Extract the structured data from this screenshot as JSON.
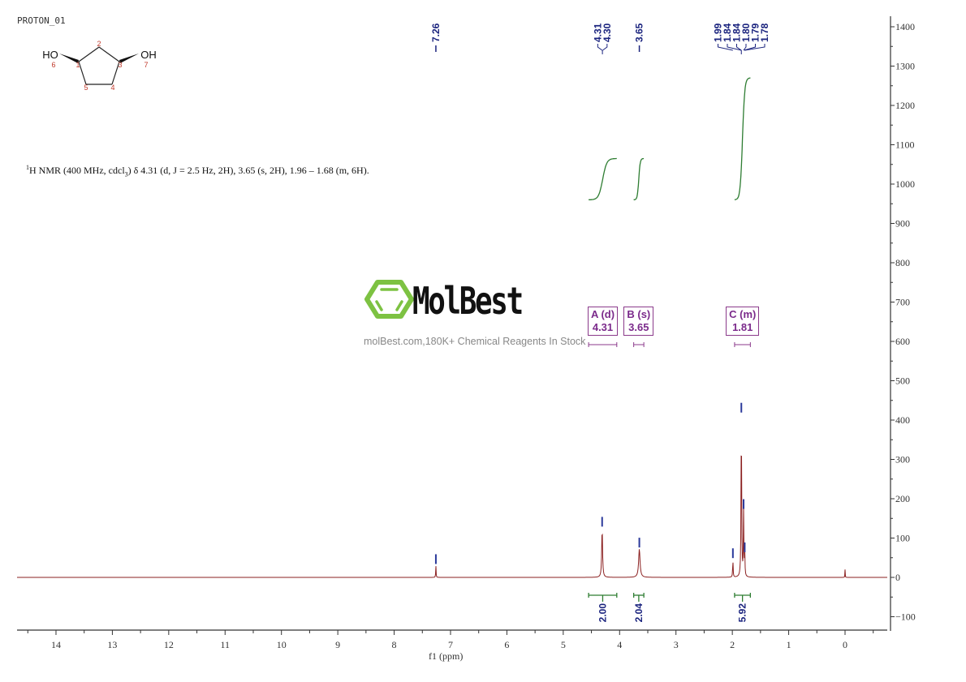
{
  "sample_name": "PROTON_01",
  "nmr_description_prefix": "H NMR (400 MHz, cdcl",
  "nmr_description_sup": "1",
  "nmr_description_sub": "3",
  "nmr_description_suffix": ") δ 4.31 (d, J = 2.5 Hz, 2H), 3.65 (s, 2H), 1.96 – 1.68 (m, 6H).",
  "structure": {
    "name": "cyclopentane-1,3-diol",
    "atoms": [
      {
        "label": "HO",
        "number": "6"
      },
      {
        "label": "",
        "number": "1"
      },
      {
        "label": "",
        "number": "2"
      },
      {
        "label": "",
        "number": "3"
      },
      {
        "label": "OH",
        "number": "7"
      },
      {
        "label": "",
        "number": "4"
      },
      {
        "label": "",
        "number": "5"
      }
    ]
  },
  "watermark": {
    "brand": "MolBest",
    "tagline": "molBest.com,180K+ Chemical Reagents In Stock",
    "logo_color": "#7dc242"
  },
  "colors": {
    "spectrum": "#8b2020",
    "peak_labels": "#1a237e",
    "integral": "#2e7d32",
    "multiplet_box": "#8b3a8b",
    "axis": "#333333"
  },
  "chart_data": {
    "type": "line",
    "title": "",
    "xlabel": "f1 (ppm)",
    "ylabel": "",
    "xlim": [
      14.8,
      -0.75
    ],
    "ylim": [
      -130,
      1420
    ],
    "x_ticks": [
      14,
      13,
      12,
      11,
      10,
      9,
      8,
      7,
      6,
      5,
      4,
      3,
      2,
      1,
      0
    ],
    "y_ticks": [
      1400,
      1300,
      1200,
      1100,
      1000,
      900,
      800,
      700,
      600,
      500,
      400,
      300,
      200,
      100,
      0,
      -100
    ],
    "grid": false,
    "peaks": [
      {
        "ppm": 7.26,
        "intensity": 30,
        "width": 0.008
      },
      {
        "ppm": 4.31,
        "intensity": 125,
        "width": 0.018
      },
      {
        "ppm": 3.65,
        "intensity": 72,
        "width": 0.03
      },
      {
        "ppm": 1.99,
        "intensity": 45,
        "width": 0.01
      },
      {
        "ppm": 1.84,
        "intensity": 415,
        "width": 0.012
      },
      {
        "ppm": 1.8,
        "intensity": 170,
        "width": 0.01
      },
      {
        "ppm": 1.78,
        "intensity": 60,
        "width": 0.01
      },
      {
        "ppm": 0.0,
        "intensity": 20,
        "width": 0.006
      }
    ],
    "peak_labels": {
      "groups": [
        {
          "labels": [
            "7.26"
          ],
          "x_ppm": [
            7.26
          ]
        },
        {
          "labels": [
            "4.31",
            "4.30"
          ],
          "x_ppm": [
            4.31,
            4.3
          ]
        },
        {
          "labels": [
            "3.65"
          ],
          "x_ppm": [
            3.65
          ]
        },
        {
          "labels": [
            "1.99",
            "1.84",
            "1.84",
            "1.80",
            "1.79",
            "1.78"
          ],
          "x_ppm": [
            1.99,
            1.84,
            1.84,
            1.8,
            1.79,
            1.78
          ]
        }
      ]
    },
    "multiplets": [
      {
        "label": "A (d)",
        "shift": "4.31",
        "range_ppm": [
          4.55,
          4.05
        ]
      },
      {
        "label": "B (s)",
        "shift": "3.65",
        "range_ppm": [
          3.75,
          3.57
        ]
      },
      {
        "label": "C (m)",
        "shift": "1.81",
        "range_ppm": [
          1.96,
          1.68
        ]
      }
    ],
    "integrals": [
      {
        "value": "2.00",
        "range_ppm": [
          4.55,
          4.05
        ],
        "curve_y": [
          960,
          1065
        ]
      },
      {
        "value": "2.04",
        "range_ppm": [
          3.75,
          3.57
        ],
        "curve_y": [
          960,
          1065
        ]
      },
      {
        "value": "5.92",
        "range_ppm": [
          1.96,
          1.68
        ],
        "curve_y": [
          960,
          1270
        ]
      }
    ]
  }
}
